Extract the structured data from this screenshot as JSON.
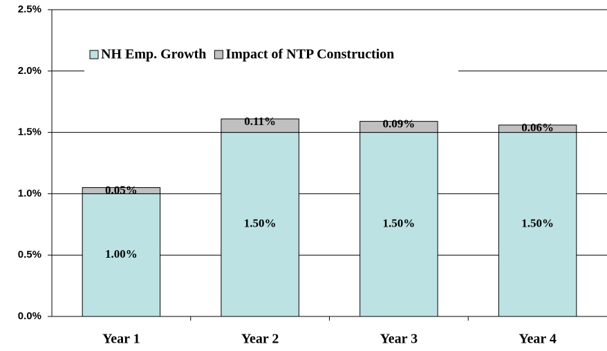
{
  "chart_data": {
    "type": "stacked_bar",
    "categories": [
      "Year 1",
      "Year 2",
      "Year 3",
      "Year 4"
    ],
    "series": [
      {
        "name": "NH Emp. Growth",
        "color": "#bde2e3",
        "values": [
          1.0,
          1.5,
          1.5,
          1.5
        ],
        "value_labels": [
          "1.00%",
          "1.50%",
          "1.50%",
          "1.50%"
        ]
      },
      {
        "name": "Impact of NTP Construction",
        "color": "#c0c0c0",
        "values": [
          0.05,
          0.11,
          0.09,
          0.06
        ],
        "value_labels": [
          "0.05%",
          "0.11%",
          "0.09%",
          "0.06%"
        ]
      }
    ],
    "ylim": [
      0,
      2.5
    ],
    "yticks": [
      {
        "value": 0,
        "label": "0.0%"
      },
      {
        "value": 0.5,
        "label": "0.5%"
      },
      {
        "value": 1.0,
        "label": "1.0%"
      },
      {
        "value": 1.5,
        "label": "1.5%"
      },
      {
        "value": 2.0,
        "label": "2.0%"
      },
      {
        "value": 2.5,
        "label": "2.5%"
      }
    ],
    "grid": true,
    "legend": "top-left"
  }
}
